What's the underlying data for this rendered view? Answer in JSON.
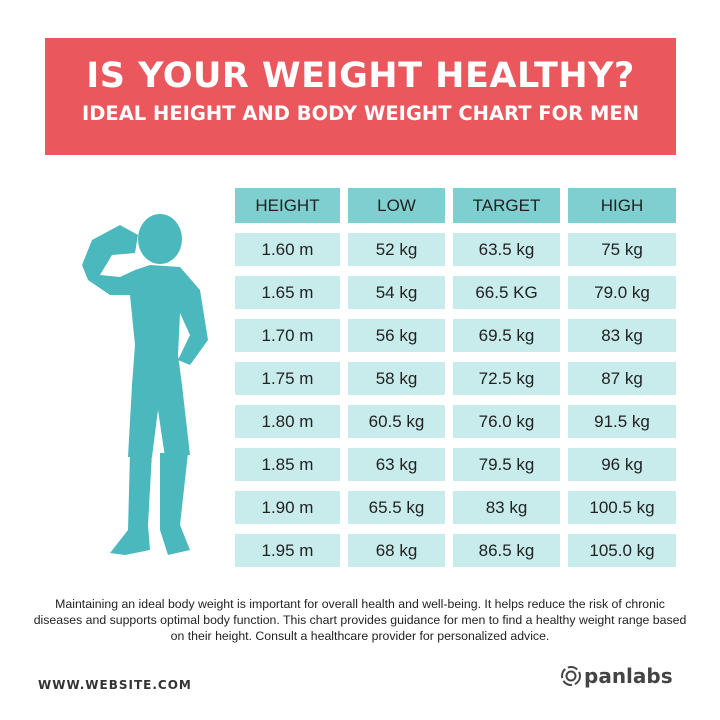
{
  "banner": {
    "title": "IS YOUR WEIGHT HEALTHY?",
    "subtitle": "IDEAL HEIGHT AND BODY WEIGHT CHART FOR MEN"
  },
  "colors": {
    "banner": "#ea575c",
    "header_cell": "#7fcfd1",
    "body_cell": "#c8ebeb",
    "silhouette": "#4bb8bd"
  },
  "figure_icon": "man-drinking-silhouette",
  "table": {
    "headers": [
      "HEIGHT",
      "LOW",
      "TARGET",
      "HIGH"
    ],
    "rows": [
      [
        "1.60 m",
        "52 kg",
        "63.5 kg",
        "75 kg"
      ],
      [
        "1.65 m",
        "54 kg",
        "66.5 KG",
        "79.0 kg"
      ],
      [
        "1.70 m",
        "56 kg",
        "69.5 kg",
        "83 kg"
      ],
      [
        "1.75 m",
        "58 kg",
        "72.5 kg",
        "87 kg"
      ],
      [
        "1.80 m",
        "60.5 kg",
        "76.0 kg",
        "91.5 kg"
      ],
      [
        "1.85 m",
        "63 kg",
        "79.5 kg",
        "96 kg"
      ],
      [
        "1.90 m",
        "65.5 kg",
        "83 kg",
        "100.5 kg"
      ],
      [
        "1.95 m",
        "68 kg",
        "86.5 kg",
        "105.0 kg"
      ]
    ]
  },
  "description": "Maintaining an ideal body weight is important for overall health and well-being. It helps reduce the risk of chronic diseases and supports optimal body function. This chart provides guidance for men to find a healthy weight range based on their height. Consult a healthcare provider for personalized advice.",
  "footer": {
    "website": "WWW.WEBSITE.COM",
    "logo": "panlabs"
  }
}
